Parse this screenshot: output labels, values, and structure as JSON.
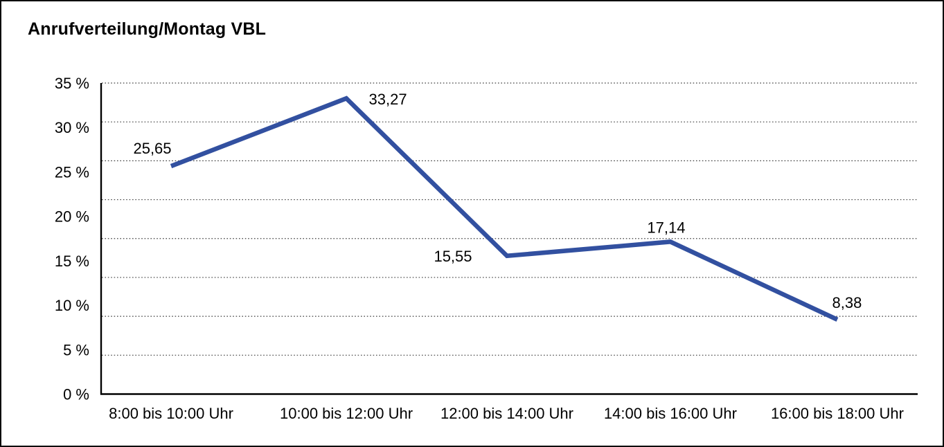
{
  "window": {
    "background": "#ffffff",
    "border_color": "#0a0a0a"
  },
  "header": {
    "title": "Anrufverteilung/Montag VBL"
  },
  "chart_data": {
    "type": "line",
    "title": "Anrufverteilung/Montag VBL",
    "categories": [
      "8:00 bis 10:00 Uhr",
      "10:00 bis 12:00 Uhr",
      "12:00 bis 14:00 Uhr",
      "14:00 bis 16:00 Uhr",
      "16:00 bis 18:00 Uhr"
    ],
    "values": [
      25.65,
      33.27,
      15.55,
      17.14,
      8.38
    ],
    "point_labels": [
      "25,65",
      "33,27",
      "15,55",
      "17,14",
      "8,38"
    ],
    "ytick_labels": [
      "35 %",
      "30 %",
      "25 %",
      "20 %",
      "15 %",
      "10 %",
      "5 %",
      "0 %"
    ],
    "ylim": [
      0,
      35
    ],
    "xlabel": "",
    "ylabel": "",
    "grid": "horizontal-dotted",
    "legend": "none",
    "line_color": "#3250A0",
    "axis_color": "#000000",
    "text_color": "#000000"
  }
}
